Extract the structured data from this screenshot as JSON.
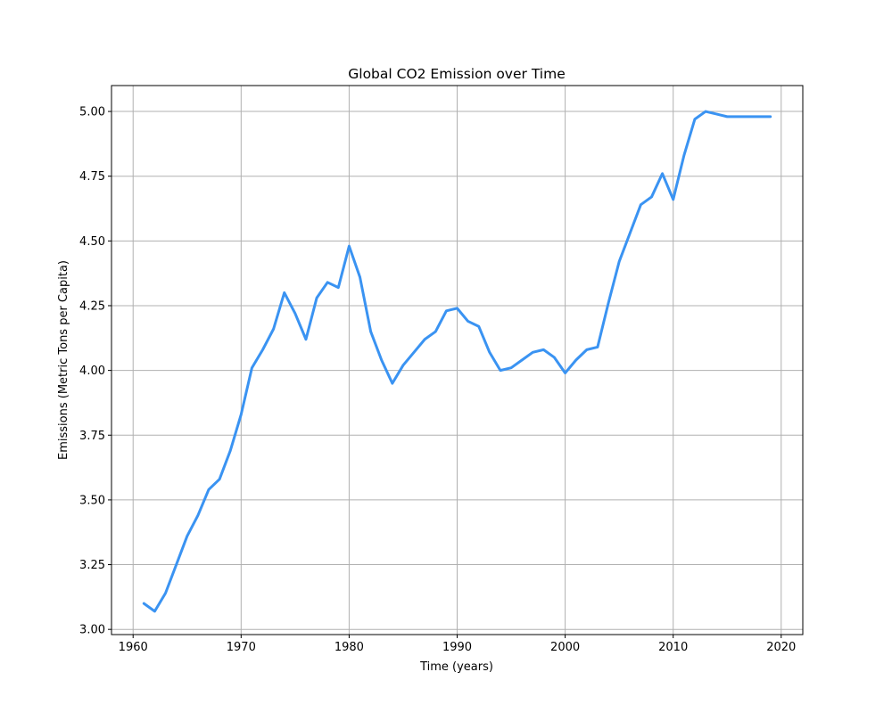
{
  "chart_data": {
    "type": "line",
    "title": "Global CO2 Emission over Time",
    "xlabel": "Time (years)",
    "ylabel": "Emissions (Metric Tons per Capita)",
    "xlim": [
      1958,
      2022
    ],
    "ylim": [
      2.98,
      5.1
    ],
    "xticks": [
      1960,
      1970,
      1980,
      1990,
      2000,
      2010,
      2020
    ],
    "yticks": [
      3.0,
      3.25,
      3.5,
      3.75,
      4.0,
      4.25,
      4.5,
      4.75,
      5.0
    ],
    "ytick_labels": [
      "3.00",
      "3.25",
      "3.50",
      "3.75",
      "4.00",
      "4.25",
      "4.50",
      "4.75",
      "5.00"
    ],
    "xtick_labels": [
      "1960",
      "1970",
      "1980",
      "1990",
      "2000",
      "2010",
      "2020"
    ],
    "grid": true,
    "series": [
      {
        "color": "#3a93f2",
        "x": [
          1961,
          1962,
          1963,
          1964,
          1965,
          1966,
          1967,
          1968,
          1969,
          1970,
          1971,
          1972,
          1973,
          1974,
          1975,
          1976,
          1977,
          1978,
          1979,
          1980,
          1981,
          1982,
          1983,
          1984,
          1985,
          1986,
          1987,
          1988,
          1989,
          1990,
          1991,
          1992,
          1993,
          1994,
          1995,
          1996,
          1997,
          1998,
          1999,
          2000,
          2001,
          2002,
          2003,
          2004,
          2005,
          2006,
          2007,
          2008,
          2009,
          2010,
          2011,
          2012,
          2013,
          2014,
          2015,
          2016,
          2017,
          2018,
          2019
        ],
        "y": [
          3.1,
          3.07,
          3.14,
          3.25,
          3.36,
          3.44,
          3.54,
          3.58,
          3.69,
          3.83,
          4.01,
          4.08,
          4.16,
          4.3,
          4.22,
          4.12,
          4.28,
          4.34,
          4.32,
          4.48,
          4.36,
          4.15,
          4.04,
          3.95,
          4.02,
          4.07,
          4.12,
          4.15,
          4.23,
          4.24,
          4.19,
          4.17,
          4.07,
          4.0,
          4.01,
          4.04,
          4.07,
          4.08,
          4.05,
          3.99,
          4.04,
          4.08,
          4.09,
          4.26,
          4.42,
          4.53,
          4.64,
          4.67,
          4.76,
          4.66,
          4.83,
          4.97,
          5.0,
          4.99,
          4.98,
          4.98,
          4.98,
          4.98,
          4.98
        ]
      }
    ]
  }
}
